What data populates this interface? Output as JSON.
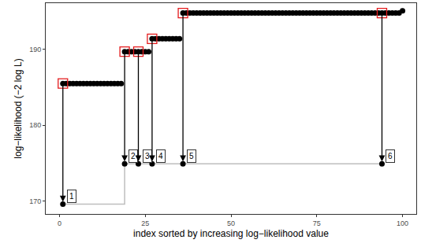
{
  "chart_data": {
    "type": "scatter",
    "x_label": "index sorted by increasing log−likelihood value",
    "y_label": "log−likelihood (−2 log L)",
    "xlim": [
      -4,
      104
    ],
    "xticks": [
      0,
      25,
      50,
      75,
      100
    ],
    "ylim": [
      168.3,
      196.1
    ],
    "yticks": [
      170,
      180,
      190
    ],
    "grid": false,
    "color": "#000000",
    "marker": "circle",
    "x": [
      1,
      2,
      3,
      4,
      5,
      6,
      7,
      8,
      9,
      10,
      11,
      12,
      13,
      14,
      15,
      16,
      17,
      18,
      19,
      20,
      21,
      22,
      23,
      24,
      25,
      26,
      27,
      28,
      29,
      30,
      31,
      32,
      33,
      34,
      35,
      36,
      37,
      38,
      39,
      40,
      41,
      42,
      43,
      44,
      45,
      46,
      47,
      48,
      49,
      50,
      51,
      52,
      53,
      54,
      55,
      56,
      57,
      58,
      59,
      60,
      61,
      62,
      63,
      64,
      65,
      66,
      67,
      68,
      69,
      70,
      71,
      72,
      73,
      74,
      75,
      76,
      77,
      78,
      79,
      80,
      81,
      82,
      83,
      84,
      85,
      86,
      87,
      88,
      89,
      90,
      91,
      92,
      93,
      94,
      95,
      96,
      97,
      98,
      99,
      100
    ],
    "values": [
      185.5,
      185.5,
      185.5,
      185.5,
      185.5,
      185.5,
      185.5,
      185.5,
      185.5,
      185.5,
      185.5,
      185.5,
      185.5,
      185.5,
      185.5,
      185.5,
      185.5,
      185.5,
      189.7,
      189.7,
      189.7,
      189.7,
      189.7,
      189.7,
      189.7,
      189.7,
      191.4,
      191.4,
      191.4,
      191.4,
      191.4,
      191.4,
      191.4,
      191.4,
      191.4,
      194.8,
      194.8,
      194.8,
      194.8,
      194.8,
      194.8,
      194.8,
      194.8,
      194.8,
      194.8,
      194.8,
      194.8,
      194.8,
      194.8,
      194.8,
      194.8,
      194.8,
      194.8,
      194.8,
      194.8,
      194.8,
      194.8,
      194.8,
      194.8,
      194.8,
      194.8,
      194.8,
      194.8,
      194.8,
      194.8,
      194.8,
      194.8,
      194.8,
      194.8,
      194.8,
      194.8,
      194.8,
      194.8,
      194.8,
      194.8,
      194.8,
      194.8,
      194.8,
      194.8,
      194.8,
      194.8,
      194.8,
      194.8,
      194.8,
      194.8,
      194.8,
      194.8,
      194.8,
      194.8,
      194.8,
      194.8,
      194.8,
      194.8,
      194.8,
      194.8,
      194.8,
      194.8,
      194.8,
      194.8,
      195.1
    ],
    "highlight": {
      "x": [
        1,
        19,
        23,
        27,
        36,
        94
      ],
      "values": [
        185.5,
        189.7,
        189.7,
        191.4,
        194.8,
        194.8
      ],
      "color": "#e41a1c",
      "marker": "square-open"
    },
    "targets": {
      "x": [
        1,
        19,
        23,
        27,
        36,
        94
      ],
      "values": [
        169.6,
        174.9,
        174.9,
        174.9,
        174.9,
        174.9
      ],
      "labels": [
        "1",
        "2",
        "3",
        "4",
        "5",
        "6"
      ],
      "color": "#000000"
    },
    "path": {
      "x": [
        1,
        19,
        19,
        94
      ],
      "values": [
        169.6,
        169.6,
        174.9,
        174.9
      ],
      "color": "#bebebe",
      "line_style": "solid"
    }
  }
}
